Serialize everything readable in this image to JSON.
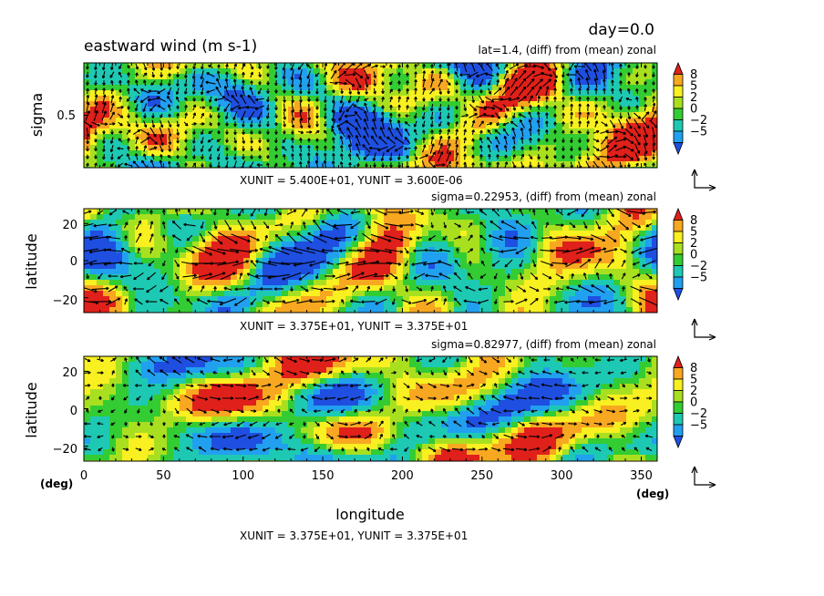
{
  "figure": {
    "title": "eastward wind (m s-1)",
    "time_label": "day=0.0"
  },
  "colors": {
    "levels": [
      "#1f4fe0",
      "#21a0f0",
      "#1ec9b3",
      "#33cc33",
      "#a8e020",
      "#f8f020",
      "#f8a820",
      "#e0201a"
    ],
    "arrow": "#000000"
  },
  "chart_data": [
    {
      "type": "heatmap",
      "panel": "top",
      "subtitle": "lat=1.4, (diff) from (mean) zonal",
      "ylabel": "sigma",
      "y_ticks": [
        "0.5"
      ],
      "x_range": [
        0,
        360
      ],
      "y_range": [
        0,
        1
      ],
      "vector_note": "XUNIT = 5.400E+01, YUNIT = 3.600E-06",
      "colorbar": {
        "labels": [
          "8",
          "5",
          "2",
          "0",
          "-2",
          "-5"
        ],
        "levels": [
          -8,
          -5,
          -2,
          0,
          2,
          5,
          8
        ]
      },
      "seed": 11
    },
    {
      "type": "heatmap",
      "panel": "middle",
      "subtitle": "sigma=0.22953, (diff) from (mean) zonal",
      "ylabel": "latitude",
      "y_ticks": [
        "20",
        "0",
        "−20"
      ],
      "y_tick_values": [
        20,
        0,
        -20
      ],
      "x_range": [
        0,
        360
      ],
      "y_range": [
        -28,
        28
      ],
      "vector_note": "XUNIT = 3.375E+01, YUNIT = 3.375E+01",
      "colorbar": {
        "labels": [
          "8",
          "5",
          "2",
          "0",
          "-2",
          "-5"
        ],
        "levels": [
          -8,
          -5,
          -2,
          0,
          2,
          5,
          8
        ]
      },
      "seed": 23
    },
    {
      "type": "heatmap",
      "panel": "bottom",
      "subtitle": "sigma=0.82977, (diff) from (mean) zonal",
      "ylabel": "latitude",
      "y_ticks": [
        "20",
        "0",
        "−20"
      ],
      "y_tick_values": [
        20,
        0,
        -20
      ],
      "x_range": [
        0,
        360
      ],
      "y_range": [
        -28,
        28
      ],
      "xlabel": "longitude",
      "x_ticks": [
        "0",
        "50",
        "100",
        "150",
        "200",
        "250",
        "300",
        "350"
      ],
      "x_tick_values": [
        0,
        50,
        100,
        150,
        200,
        250,
        300,
        350
      ],
      "x_unit": "(deg)",
      "y_unit": "(deg)",
      "vector_note": "XUNIT = 3.375E+01, YUNIT = 3.375E+01",
      "colorbar": {
        "labels": [
          "8",
          "5",
          "2",
          "0",
          "-2",
          "-5"
        ],
        "levels": [
          -8,
          -5,
          -2,
          0,
          2,
          5,
          8
        ]
      },
      "seed": 37
    }
  ]
}
